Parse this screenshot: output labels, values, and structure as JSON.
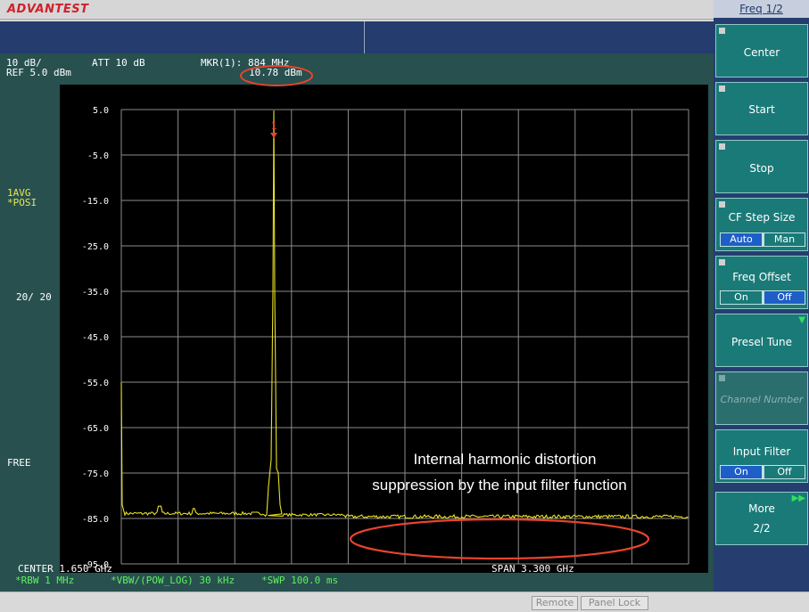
{
  "brand": "ADVANTEST",
  "screen": {
    "scale": "10 dB/",
    "ref": "REF 5.0 dBm",
    "att": "ATT 10 dB",
    "marker_label": "MKR(1): 884 MHz",
    "marker_value": "10.78 dBm",
    "marker_number": "1",
    "avg_mode": "1AVG",
    "detector": "*POSI",
    "avg_count": "20/ 20",
    "trigger": "FREE",
    "center": "CENTER 1.650 GHz",
    "span": "SPAN 3.300 GHz",
    "rbw": "*RBW 1 MHz",
    "vbw": "*VBW/(POW_LOG) 30 kHz",
    "swp": "*SWP 100.0 ms"
  },
  "plot": {
    "y_ticks": [
      "5.0",
      "-5.0",
      "-15.0",
      "-25.0",
      "-35.0",
      "-45.0",
      "-55.0",
      "-65.0",
      "-75.0",
      "-85.0",
      "-95.0"
    ],
    "x_divisions": 10,
    "y_divisions": 10,
    "trace_color": "#e8e020",
    "grid_color": "#8c8c8c"
  },
  "annotation": {
    "line1": "Internal harmonic distortion",
    "line2": "suppression by the input filter function",
    "circle_color": "#e8442e"
  },
  "softkeys": {
    "title": "Freq 1/2",
    "center": "Center",
    "start": "Start",
    "stop": "Stop",
    "cf_step": "CF Step Size",
    "cf_auto": "Auto",
    "cf_man": "Man",
    "freq_offset": "Freq Offset",
    "offset_on": "On",
    "offset_off": "Off",
    "presel": "Presel Tune",
    "channel": "Channel Number",
    "input_filter": "Input Filter",
    "filter_on": "On",
    "filter_off": "Off",
    "more": "More",
    "more_page": "2/2"
  },
  "status": {
    "remote": "Remote",
    "panel_lock": "Panel Lock"
  }
}
